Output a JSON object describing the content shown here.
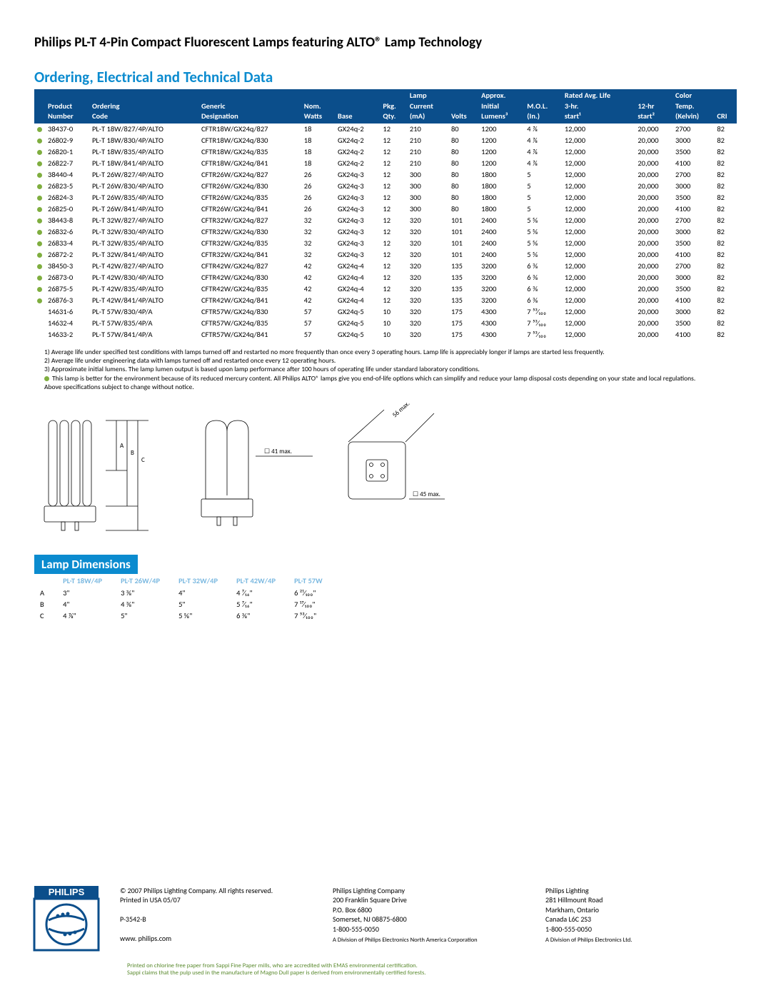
{
  "colors": {
    "header_bg": "#0b4e8b",
    "section_title": "#0b8bcf",
    "bullet": "#7fae3f",
    "dim_title_bg": "#0b8bcf",
    "dim_header_text": "#7ab8e0",
    "logo_blue": "#0b4e8b",
    "eco_text": "#5a8a2e"
  },
  "page_title": "Philips PL-T 4-Pin Compact Fluorescent Lamps featuring ALTO® Lamp Technology",
  "section1_title": "Ordering, Electrical and Technical Data",
  "table": {
    "header_top": [
      "",
      "",
      "",
      "",
      "",
      "",
      "Lamp",
      "",
      "Approx.",
      "",
      "Rated Avg. Life",
      "",
      "Color",
      ""
    ],
    "header_mid": [
      "",
      "Product",
      "Ordering",
      "Generic",
      "Nom.",
      "",
      "Pkg.",
      "Current",
      "",
      "Initial",
      "M.O.L.",
      "3-hr.",
      "12-hr",
      "Temp.",
      ""
    ],
    "header_bot": [
      "",
      "Number",
      "Code",
      "Designation",
      "Watts",
      "Base",
      "Qty.",
      "(mA)",
      "Volts",
      "Lumens³",
      "(In.)",
      "start¹",
      "start²",
      "(Kelvin)",
      "CRI"
    ],
    "rows": [
      {
        "b": true,
        "c": [
          "38437-0",
          "PL-T 18W/827/4P/ALTO",
          "CFTR18W/GX24q/827",
          "18",
          "GX24q-2",
          "12",
          "210",
          "80",
          "1200",
          "4 ⅞",
          "12,000",
          "20,000",
          "2700",
          "82"
        ]
      },
      {
        "b": true,
        "c": [
          "26802-9",
          "PL-T 18W/830/4P/ALTO",
          "CFTR18W/GX24q/830",
          "18",
          "GX24q-2",
          "12",
          "210",
          "80",
          "1200",
          "4 ⅞",
          "12,000",
          "20,000",
          "3000",
          "82"
        ]
      },
      {
        "b": true,
        "c": [
          "26820-1",
          "PL-T 18W/835/4P/ALTO",
          "CFTR18W/GX24q/835",
          "18",
          "GX24q-2",
          "12",
          "210",
          "80",
          "1200",
          "4 ⅞",
          "12,000",
          "20,000",
          "3500",
          "82"
        ]
      },
      {
        "b": true,
        "c": [
          "26822-7",
          "PL-T 18W/841/4P/ALTO",
          "CFTR18W/GX24q/841",
          "18",
          "GX24q-2",
          "12",
          "210",
          "80",
          "1200",
          "4 ⅞",
          "12,000",
          "20,000",
          "4100",
          "82"
        ]
      },
      {
        "b": true,
        "c": [
          "38440-4",
          "PL-T 26W/827/4P/ALTO",
          "CFTR26W/GX24q/827",
          "26",
          "GX24q-3",
          "12",
          "300",
          "80",
          "1800",
          "5",
          "12,000",
          "20,000",
          "2700",
          "82"
        ]
      },
      {
        "b": true,
        "c": [
          "26823-5",
          "PL-T 26W/830/4P/ALTO",
          "CFTR26W/GX24q/830",
          "26",
          "GX24q-3",
          "12",
          "300",
          "80",
          "1800",
          "5",
          "12,000",
          "20,000",
          "3000",
          "82"
        ]
      },
      {
        "b": true,
        "c": [
          "26824-3",
          "PL-T 26W/835/4P/ALTO",
          "CFTR26W/GX24q/835",
          "26",
          "GX24q-3",
          "12",
          "300",
          "80",
          "1800",
          "5",
          "12,000",
          "20,000",
          "3500",
          "82"
        ]
      },
      {
        "b": true,
        "c": [
          "26825-0",
          "PL-T 26W/841/4P/ALTO",
          "CFTR26W/GX24q/841",
          "26",
          "GX24q-3",
          "12",
          "300",
          "80",
          "1800",
          "5",
          "12,000",
          "20,000",
          "4100",
          "82"
        ]
      },
      {
        "b": true,
        "c": [
          "38443-8",
          "PL-T 32W/827/4P/ALTO",
          "CFTR32W/GX24q/827",
          "32",
          "GX24q-3",
          "12",
          "320",
          "101",
          "2400",
          "5 ⅝",
          "12,000",
          "20,000",
          "2700",
          "82"
        ]
      },
      {
        "b": true,
        "c": [
          "26832-6",
          "PL-T 32W/830/4P/ALTO",
          "CFTR32W/GX24q/830",
          "32",
          "GX24q-3",
          "12",
          "320",
          "101",
          "2400",
          "5 ⅝",
          "12,000",
          "20,000",
          "3000",
          "82"
        ]
      },
      {
        "b": true,
        "c": [
          "26833-4",
          "PL-T 32W/835/4P/ALTO",
          "CFTR32W/GX24q/835",
          "32",
          "GX24q-3",
          "12",
          "320",
          "101",
          "2400",
          "5 ⅝",
          "12,000",
          "20,000",
          "3500",
          "82"
        ]
      },
      {
        "b": true,
        "c": [
          "26872-2",
          "PL-T 32W/841/4P/ALTO",
          "CFTR32W/GX24q/841",
          "32",
          "GX24q-3",
          "12",
          "320",
          "101",
          "2400",
          "5 ⅝",
          "12,000",
          "20,000",
          "4100",
          "82"
        ]
      },
      {
        "b": true,
        "c": [
          "38450-3",
          "PL-T 42W/827/4P/ALTO",
          "CFTR42W/GX24q/827",
          "42",
          "GX24q-4",
          "12",
          "320",
          "135",
          "3200",
          "6 ⅜",
          "12,000",
          "20,000",
          "2700",
          "82"
        ]
      },
      {
        "b": true,
        "c": [
          "26873-0",
          "PL-T 42W/830/4P/ALTO",
          "CFTR42W/GX24q/830",
          "42",
          "GX24q-4",
          "12",
          "320",
          "135",
          "3200",
          "6 ⅜",
          "12,000",
          "20,000",
          "3000",
          "82"
        ]
      },
      {
        "b": true,
        "c": [
          "26875-5",
          "PL-T 42W/835/4P/ALTO",
          "CFTR42W/GX24q/835",
          "42",
          "GX24q-4",
          "12",
          "320",
          "135",
          "3200",
          "6 ⅜",
          "12,000",
          "20,000",
          "3500",
          "82"
        ]
      },
      {
        "b": true,
        "c": [
          "26876-3",
          "PL-T 42W/841/4P/ALTO",
          "CFTR42W/GX24q/841",
          "42",
          "GX24q-4",
          "12",
          "320",
          "135",
          "3200",
          "6 ⅜",
          "12,000",
          "20,000",
          "4100",
          "82"
        ]
      },
      {
        "b": false,
        "c": [
          "14631-6",
          "PL-T 57W/830/4P/A",
          "CFTR57W/GX24q/830",
          "57",
          "GX24q-5",
          "10",
          "320",
          "175",
          "4300",
          "7 ⁵³⁄₁₀₀",
          "12,000",
          "20,000",
          "3000",
          "82"
        ]
      },
      {
        "b": false,
        "c": [
          "14632-4",
          "PL-T 57W/835/4P/A",
          "CFTR57W/GX24q/835",
          "57",
          "GX24q-5",
          "10",
          "320",
          "175",
          "4300",
          "7 ⁵³⁄₁₀₀",
          "12,000",
          "20,000",
          "3500",
          "82"
        ]
      },
      {
        "b": false,
        "c": [
          "14633-2",
          "PL-T 57W/841/4P/A",
          "CFTR57W/GX24q/841",
          "57",
          "GX24q-5",
          "10",
          "320",
          "175",
          "4300",
          "7 ⁵³⁄₁₀₀",
          "12,000",
          "20,000",
          "4100",
          "82"
        ]
      }
    ]
  },
  "footnotes": [
    "1) Average life under specified test conditions with lamps turned off and restarted no more frequently than once every 3 operating hours. Lamp life is appreciably longer if lamps are started less frequently.",
    "2) Average life under engineering data with lamps turned off and restarted once every 12 operating hours.",
    "3) Approximate initial lumens. The lamp lumen output is based upon lamp performance after 100 hours of operating life under standard laboratory conditions."
  ],
  "footnote_bullet": "This lamp is better for the environment because of its reduced mercury content. All Philips ALTO® lamps give you end-of-life options which can simplify and reduce your lamp disposal costs depending on your state and local regulations.",
  "footnote_last": "Above specifications subject to change without notice.",
  "diagram_labels": {
    "abc": [
      "A",
      "B",
      "C"
    ],
    "d2": "☐  41 max.",
    "d3a": "56 max.",
    "d3b": "☐  45 max."
  },
  "dim_title": "Lamp Dimensions",
  "dims": {
    "headers": [
      "",
      "PL-T 18W/4P",
      "PL-T 26W/4P",
      "PL-T 32W/4P",
      "PL-T 42W/4P",
      "PL-T 57W"
    ],
    "rows": [
      [
        "A",
        "3\"",
        "3 ⅜\"",
        "4\"",
        "4 ⁷⁄₁₆\"",
        "6 ²¹⁄₁₀₀\""
      ],
      [
        "B",
        "4\"",
        "4 ⅜\"",
        "5\"",
        "5 ⁷⁄₁₆\"",
        "7 ¹⁷⁄₁₀₀\""
      ],
      [
        "C",
        "4 ⅞\"",
        "5\"",
        "5 ⅝\"",
        "6 ⅜\"",
        "7 ⁵³⁄₁₀₀\""
      ]
    ]
  },
  "footer": {
    "logo_text": "PHILIPS",
    "col1": [
      "© 2007 Philips Lighting Company. All rights reserved.",
      "Printed in USA 05/07",
      "",
      "P-3542-B",
      "",
      "www. philips.com"
    ],
    "col2": [
      "Philips Lighting Company",
      "200 Franklin Square Drive",
      "P.O. Box 6800",
      "Somerset, NJ 08875-6800",
      "1-800-555-0050"
    ],
    "col2_small": "A Division of Philips Electronics North America Corporation",
    "col3": [
      "Philips Lighting",
      "281 Hillmount Road",
      "Markham, Ontario",
      "Canada L6C 2S3",
      "1-800-555-0050"
    ],
    "col3_small": "A Division of Philips Electronics Ltd."
  },
  "eco": [
    "Printed on chlorine free paper from Sappi Fine Paper mills, who are accredited with EMAS environmental certification.",
    "Sappi claims that the pulp used in the manufacture of Magno Dull paper is derived from environmentally certified forests."
  ]
}
